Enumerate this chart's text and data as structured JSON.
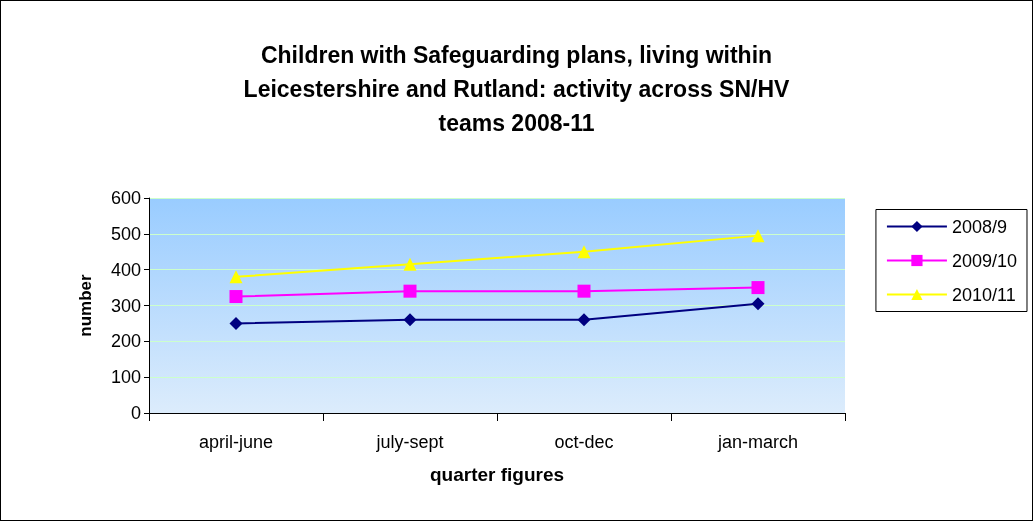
{
  "chart_data": {
    "type": "line",
    "title": "Children with Safeguarding plans, living within\nLeicestershire and Rutland: activity across SN/HV\nteams 2008-11",
    "xlabel": "quarter figures",
    "ylabel": "number",
    "categories": [
      "april-june",
      "july-sept",
      "oct-dec",
      "jan-march"
    ],
    "series": [
      {
        "name": "2008/9",
        "color": "#000080",
        "marker": "diamond",
        "values": [
          250,
          260,
          260,
          305
        ]
      },
      {
        "name": "2009/10",
        "color": "#ff00ff",
        "marker": "square",
        "values": [
          325,
          340,
          340,
          350
        ]
      },
      {
        "name": "2010/11",
        "color": "#ffff00",
        "marker": "triangle",
        "values": [
          380,
          415,
          450,
          495
        ]
      }
    ],
    "ylim": [
      0,
      600
    ],
    "yticks": [
      0,
      100,
      200,
      300,
      400,
      500,
      600
    ],
    "grid": "y",
    "legend": "right",
    "line_style": "solid"
  }
}
